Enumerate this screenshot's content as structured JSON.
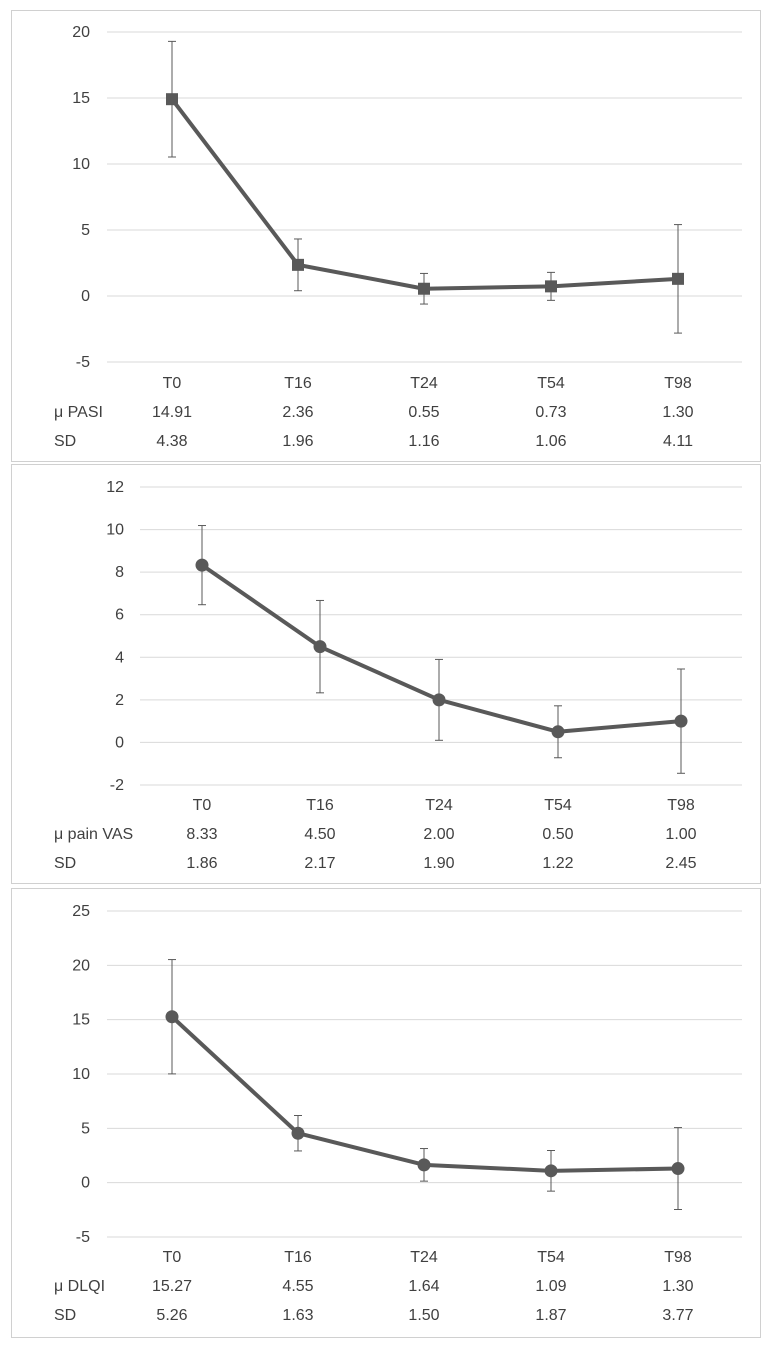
{
  "style": {
    "line_color": "#595959",
    "grid_color": "#d9d9d9",
    "text_color": "#404040",
    "border_color": "#d0d0d0"
  },
  "chart_data": [
    {
      "type": "line",
      "categories": [
        "T0",
        "T16",
        "T24",
        "T54",
        "T98"
      ],
      "series": [
        {
          "name": "μ PASI",
          "values": [
            14.91,
            2.36,
            0.55,
            0.73,
            1.3
          ],
          "error": [
            4.38,
            1.96,
            1.16,
            1.06,
            4.11
          ],
          "marker": "square"
        }
      ],
      "ylim": [
        -5,
        20
      ],
      "yticks": [
        20,
        15,
        10,
        5,
        0,
        -5
      ],
      "ytick_labels": [
        "20",
        "15",
        "10",
        "5",
        "0",
        "-5"
      ],
      "grid": true,
      "table": {
        "rows": [
          {
            "label": "μ PASI",
            "cells": [
              "14.91",
              "2.36",
              "0.55",
              "0.73",
              "1.30"
            ]
          },
          {
            "label": "SD",
            "cells": [
              "4.38",
              "1.96",
              "1.16",
              "1.06",
              "4.11"
            ]
          }
        ]
      }
    },
    {
      "type": "line",
      "categories": [
        "T0",
        "T16",
        "T24",
        "T54",
        "T98"
      ],
      "series": [
        {
          "name": "μ pain VAS",
          "values": [
            8.33,
            4.5,
            2.0,
            0.5,
            1.0
          ],
          "error": [
            1.86,
            2.17,
            1.9,
            1.22,
            2.45
          ],
          "marker": "circle"
        }
      ],
      "ylim": [
        -2,
        12
      ],
      "yticks": [
        12,
        10,
        8,
        6,
        4,
        2,
        0,
        -2
      ],
      "ytick_labels": [
        "12",
        "10",
        "8",
        "6",
        "4",
        "2",
        "0",
        "-2"
      ],
      "grid": true,
      "table": {
        "rows": [
          {
            "label": "μ pain VAS",
            "cells": [
              "8.33",
              "4.50",
              "2.00",
              "0.50",
              "1.00"
            ]
          },
          {
            "label": "SD",
            "cells": [
              "1.86",
              "2.17",
              "1.90",
              "1.22",
              "2.45"
            ]
          }
        ]
      }
    },
    {
      "type": "line",
      "categories": [
        "T0",
        "T16",
        "T24",
        "T54",
        "T98"
      ],
      "series": [
        {
          "name": "μ DLQI",
          "values": [
            15.27,
            4.55,
            1.64,
            1.09,
            1.3
          ],
          "error": [
            5.26,
            1.63,
            1.5,
            1.87,
            3.77
          ],
          "marker": "circle"
        }
      ],
      "ylim": [
        -5,
        25
      ],
      "yticks": [
        25,
        20,
        15,
        10,
        5,
        0,
        -5
      ],
      "ytick_labels": [
        "25",
        "20",
        "15",
        "10",
        "5",
        "0",
        "-5"
      ],
      "grid": true,
      "table": {
        "rows": [
          {
            "label": "μ DLQI",
            "cells": [
              "15.27",
              "4.55",
              "1.64",
              "1.09",
              "1.30"
            ]
          },
          {
            "label": "SD",
            "cells": [
              "5.26",
              "1.63",
              "1.50",
              "1.87",
              "3.77"
            ]
          }
        ]
      }
    }
  ]
}
